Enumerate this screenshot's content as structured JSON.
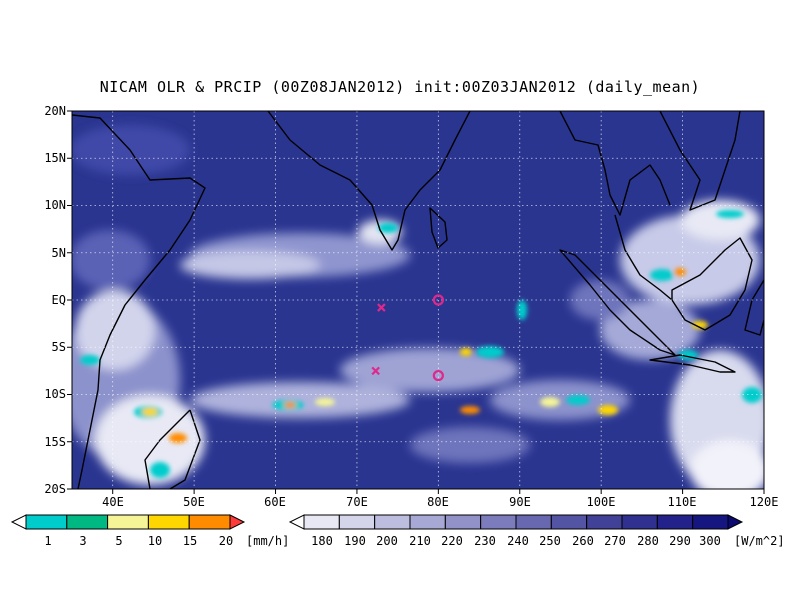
{
  "title": "NICAM OLR & PRCIP (00Z08JAN2012) init:00Z03JAN2012 (daily_mean)",
  "map": {
    "lon_range": [
      35,
      120
    ],
    "lat_range": [
      -20,
      20
    ],
    "lat_labels": [
      "20N",
      "15N",
      "10N",
      "5N",
      "EQ",
      "5S",
      "10S",
      "15S",
      "20S"
    ],
    "lat_values": [
      20,
      15,
      10,
      5,
      0,
      -5,
      -10,
      -15,
      -20
    ],
    "lon_labels": [
      "40E",
      "50E",
      "60E",
      "70E",
      "80E",
      "90E",
      "100E",
      "110E",
      "120E"
    ],
    "lon_values": [
      40,
      50,
      60,
      70,
      80,
      90,
      100,
      110,
      120
    ],
    "ocean_color": "#2a3590",
    "grid": true
  },
  "markers": [
    {
      "type": "x",
      "lon": 73,
      "lat": -0.8,
      "color": "#e0288c"
    },
    {
      "type": "circle",
      "lon": 80,
      "lat": 0,
      "color": "#e0288c"
    },
    {
      "type": "x",
      "lon": 72.3,
      "lat": -7.5,
      "color": "#e0288c"
    },
    {
      "type": "circle",
      "lon": 80,
      "lat": -8,
      "color": "#e0288c"
    }
  ],
  "precip_legend": {
    "labels": [
      "1",
      "3",
      "5",
      "10",
      "15",
      "20"
    ],
    "unit": "[mm/h]",
    "colors": [
      "#00cccc",
      "#00b882",
      "#f5f598",
      "#ffd700",
      "#ff8c00",
      "#ff3a3a"
    ]
  },
  "olr_legend": {
    "labels": [
      "180",
      "190",
      "200",
      "210",
      "220",
      "230",
      "240",
      "250",
      "260",
      "270",
      "280",
      "290",
      "300"
    ],
    "unit": "[W/m^2]",
    "colors": [
      "#ffffff",
      "#e8e8f4",
      "#d4d4ea",
      "#bdbde0",
      "#a8a8d4",
      "#9292c8",
      "#7c7cbc",
      "#6868b0",
      "#5454a4",
      "#414198",
      "#303090",
      "#22228a",
      "#161680",
      "#0a0a70"
    ]
  }
}
